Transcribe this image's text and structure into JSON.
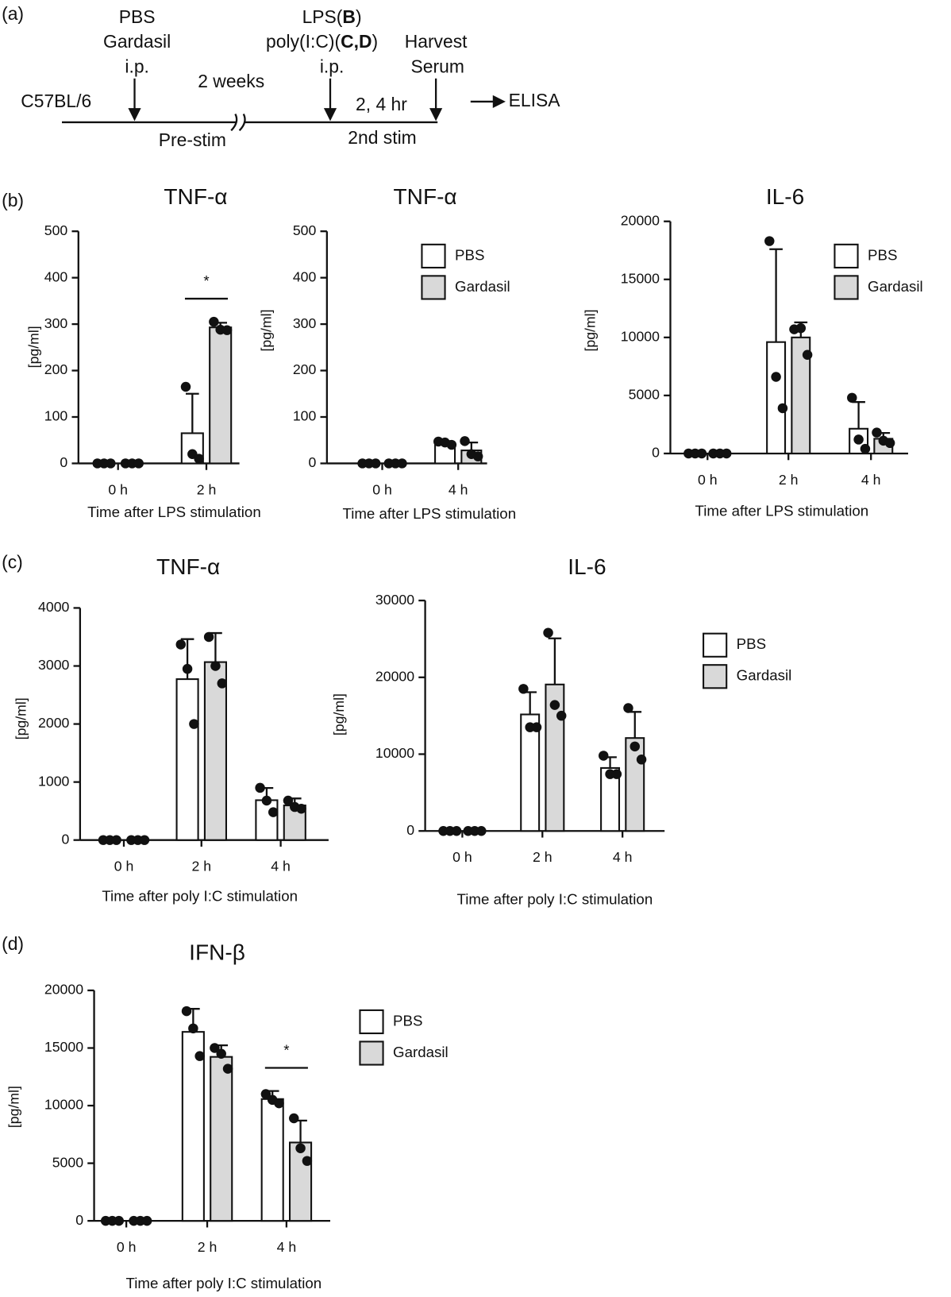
{
  "panel_labels": [
    "(a)",
    "(b)",
    "(c)",
    "(d)"
  ],
  "diagram": {
    "strain": "C57BL/6",
    "prime": [
      "PBS",
      "Gardasil",
      "i.p."
    ],
    "interval": "2 weeks",
    "pre": "Pre-stim",
    "stim": [
      [
        "LPS(",
        "B",
        ")"
      ],
      [
        "poly(I:C)(",
        "C,D",
        ")"
      ],
      [
        "i.p."
      ]
    ],
    "time": "2, 4 hr",
    "second": "2nd stim",
    "harvest": [
      "Harvest",
      "Serum"
    ],
    "readout": "ELISA"
  },
  "chart_data": [
    {
      "type": "bar",
      "title": "TNF-α",
      "ylabel": "[pg/ml]",
      "xlabel": "Time after LPS stimulation",
      "categories": [
        "0 h",
        "2 h"
      ],
      "ylim": [
        0,
        500
      ],
      "yticks": [
        0,
        100,
        200,
        300,
        400,
        500
      ],
      "legend": false,
      "series": [
        {
          "color": "#ffffff",
          "values": [
            0,
            65
          ],
          "errors": [
            0,
            85
          ],
          "points": [
            [
              0,
              0,
              0
            ],
            [
              165,
              20,
              10
            ]
          ]
        },
        {
          "color": "#d9d9d9",
          "values": [
            0,
            293
          ],
          "errors": [
            0,
            10
          ],
          "points": [
            [
              0,
              0,
              0
            ],
            [
              305,
              288,
              287
            ]
          ]
        }
      ],
      "annotations": [
        {
          "text": "*",
          "category": "2 h"
        }
      ]
    },
    {
      "type": "bar",
      "title": "TNF-α",
      "ylabel": "[pg/ml]",
      "xlabel": "Time after LPS stimulation",
      "categories": [
        "0 h",
        "4 h"
      ],
      "ylim": [
        0,
        500
      ],
      "yticks": [
        0,
        100,
        200,
        300,
        400,
        500
      ],
      "legend": true,
      "series": [
        {
          "name": "PBS",
          "color": "#ffffff",
          "values": [
            0,
            44
          ],
          "errors": [
            0,
            4
          ],
          "points": [
            [
              0,
              0,
              0
            ],
            [
              47,
              45,
              40
            ]
          ]
        },
        {
          "name": "Gardasil",
          "color": "#d9d9d9",
          "values": [
            0,
            28
          ],
          "errors": [
            0,
            17
          ],
          "points": [
            [
              0,
              0,
              0
            ],
            [
              48,
              20,
              15
            ]
          ]
        }
      ]
    },
    {
      "type": "bar",
      "title": "IL-6",
      "ylabel": "[pg/ml]",
      "xlabel": "Time after LPS stimulation",
      "categories": [
        "0 h",
        "2 h",
        "4 h"
      ],
      "ylim": [
        0,
        20000
      ],
      "yticks": [
        0,
        5000,
        10000,
        15000,
        20000
      ],
      "legend": true,
      "series": [
        {
          "name": "PBS",
          "color": "#ffffff",
          "values": [
            0,
            9600,
            2133
          ],
          "errors": [
            0,
            8000,
            2300
          ],
          "points": [
            [
              0,
              0,
              0
            ],
            [
              18300,
              6600,
              3900
            ],
            [
              4800,
              1200,
              400
            ]
          ]
        },
        {
          "name": "Gardasil",
          "color": "#d9d9d9",
          "values": [
            0,
            10000,
            1270
          ],
          "errors": [
            0,
            1300,
            500
          ],
          "points": [
            [
              0,
              0,
              0
            ],
            [
              10700,
              10800,
              8500
            ],
            [
              1800,
              1100,
              900
            ]
          ]
        }
      ]
    },
    {
      "type": "bar",
      "title": "TNF-α",
      "ylabel": "[pg/ml]",
      "xlabel": "Time after poly I:C stimulation",
      "categories": [
        "0 h",
        "2 h",
        "4 h"
      ],
      "ylim": [
        0,
        4000
      ],
      "yticks": [
        0,
        1000,
        2000,
        3000,
        4000
      ],
      "legend": false,
      "series": [
        {
          "color": "#ffffff",
          "values": [
            0,
            2773,
            687
          ],
          "errors": [
            0,
            690,
            210
          ],
          "points": [
            [
              0,
              0,
              0
            ],
            [
              3370,
              2950,
              2000
            ],
            [
              900,
              680,
              480
            ]
          ]
        },
        {
          "color": "#d9d9d9",
          "values": [
            0,
            3067,
            597
          ],
          "errors": [
            0,
            500,
            120
          ],
          "points": [
            [
              0,
              0,
              0
            ],
            [
              3500,
              3000,
              2700
            ],
            [
              680,
              570,
              540
            ]
          ]
        }
      ]
    },
    {
      "type": "bar",
      "title": "IL-6",
      "ylabel": "[pg/ml]",
      "xlabel": "Time after poly I:C stimulation",
      "categories": [
        "0 h",
        "2 h",
        "4 h"
      ],
      "ylim": [
        0,
        30000
      ],
      "yticks": [
        0,
        10000,
        20000,
        30000
      ],
      "legend": true,
      "series": [
        {
          "name": "PBS",
          "color": "#ffffff",
          "values": [
            0,
            15170,
            8200
          ],
          "errors": [
            0,
            2900,
            1400
          ],
          "points": [
            [
              0,
              0,
              0
            ],
            [
              18500,
              13500,
              13500
            ],
            [
              9800,
              7400,
              7400
            ]
          ]
        },
        {
          "name": "Gardasil",
          "color": "#d9d9d9",
          "values": [
            0,
            19070,
            12100
          ],
          "errors": [
            0,
            6000,
            3400
          ],
          "points": [
            [
              0,
              0,
              0
            ],
            [
              25800,
              16400,
              15000
            ],
            [
              16000,
              11000,
              9300
            ]
          ]
        }
      ]
    },
    {
      "type": "bar",
      "title": "IFN-β",
      "ylabel": "[pg/ml]",
      "xlabel": "Time after poly I:C stimulation",
      "categories": [
        "0 h",
        "2 h",
        "4 h"
      ],
      "ylim": [
        0,
        20000
      ],
      "yticks": [
        0,
        5000,
        10000,
        15000,
        20000
      ],
      "legend": true,
      "series": [
        {
          "name": "PBS",
          "color": "#ffffff",
          "values": [
            0,
            16400,
            10570
          ],
          "errors": [
            0,
            2000,
            700
          ],
          "points": [
            [
              0,
              0,
              0
            ],
            [
              18200,
              16700,
              14300
            ],
            [
              11000,
              10500,
              10200
            ]
          ]
        },
        {
          "name": "Gardasil",
          "color": "#d9d9d9",
          "values": [
            0,
            14230,
            6800
          ],
          "errors": [
            0,
            1000,
            1900
          ],
          "points": [
            [
              0,
              0,
              0
            ],
            [
              15000,
              14500,
              13200
            ],
            [
              8900,
              6300,
              5200
            ]
          ]
        }
      ],
      "annotations": [
        {
          "text": "*",
          "category": "4 h"
        }
      ]
    }
  ]
}
